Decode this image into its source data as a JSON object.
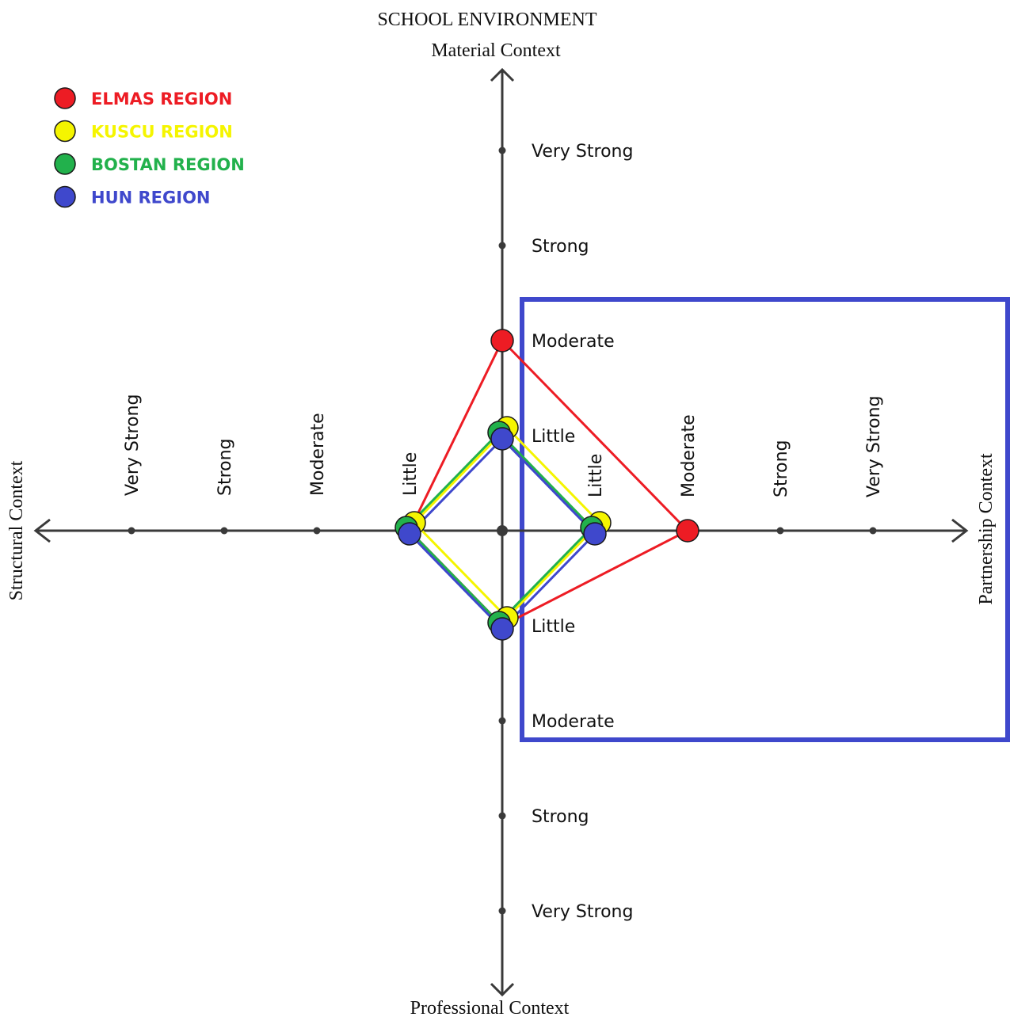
{
  "chart_data": {
    "type": "radar",
    "title": "SCHOOL ENVIRONMENT",
    "axes": {
      "top": "Material Context",
      "right": "Partnership Context",
      "bottom": "Professional Context",
      "left": "Structural Context"
    },
    "levels": [
      "Little",
      "Moderate",
      "Strong",
      "Very Strong"
    ],
    "scale": {
      "min": 0,
      "max": 4
    },
    "series": [
      {
        "name": "ELMAS REGION",
        "color": "#ed1c24",
        "values": {
          "top": 2,
          "right": 2,
          "bottom": 1,
          "left": 1
        }
      },
      {
        "name": "KUSCU REGION",
        "color": "#f5f500",
        "values": {
          "top": 1,
          "right": 1,
          "bottom": 1,
          "left": 1
        }
      },
      {
        "name": "BOSTAN REGION",
        "color": "#22b14c",
        "values": {
          "top": 1,
          "right": 1,
          "bottom": 1,
          "left": 1
        }
      },
      {
        "name": "HUN REGION",
        "color": "#3f48cc",
        "values": {
          "top": 1,
          "right": 1,
          "bottom": 1,
          "left": 1
        }
      }
    ],
    "highlight": {
      "color": "#3f48cc"
    },
    "axis_color": "#3a3a3a",
    "grid": false,
    "legend_position": "top-left"
  }
}
